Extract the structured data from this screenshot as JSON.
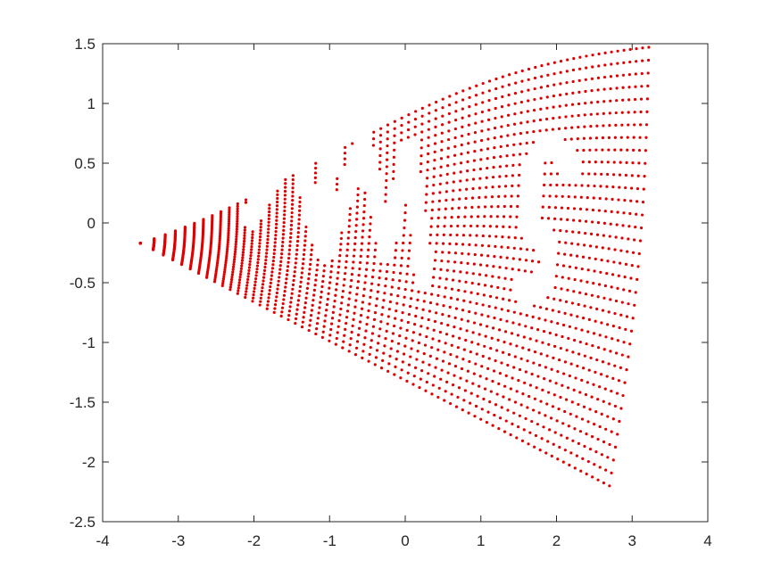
{
  "chart_data": {
    "type": "scatter",
    "title": "",
    "xlabel": "",
    "ylabel": "",
    "xlim": [
      -4,
      4
    ],
    "ylim": [
      -2.5,
      1.5
    ],
    "xticks": [
      "-4",
      "-3",
      "-2",
      "-1",
      "0",
      "1",
      "2",
      "3",
      "4"
    ],
    "yticks": [
      "1.5",
      "1",
      "0.5",
      "0",
      "-0.5",
      "-1",
      "-1.5",
      "-2",
      "-2.5"
    ],
    "grid": false,
    "legend": "none",
    "marker_color": "#e00000",
    "axis_color": "#262626",
    "series": [
      {
        "description_of_shape": "warped grid of points with letters cut out",
        "corners": {
          "left_tip": [
            -3.5,
            -0.17
          ],
          "top_right": [
            3.22,
            1.47
          ],
          "bottom_right": [
            2.7,
            -2.2
          ]
        },
        "cutout_text": "NMS"
      }
    ]
  }
}
